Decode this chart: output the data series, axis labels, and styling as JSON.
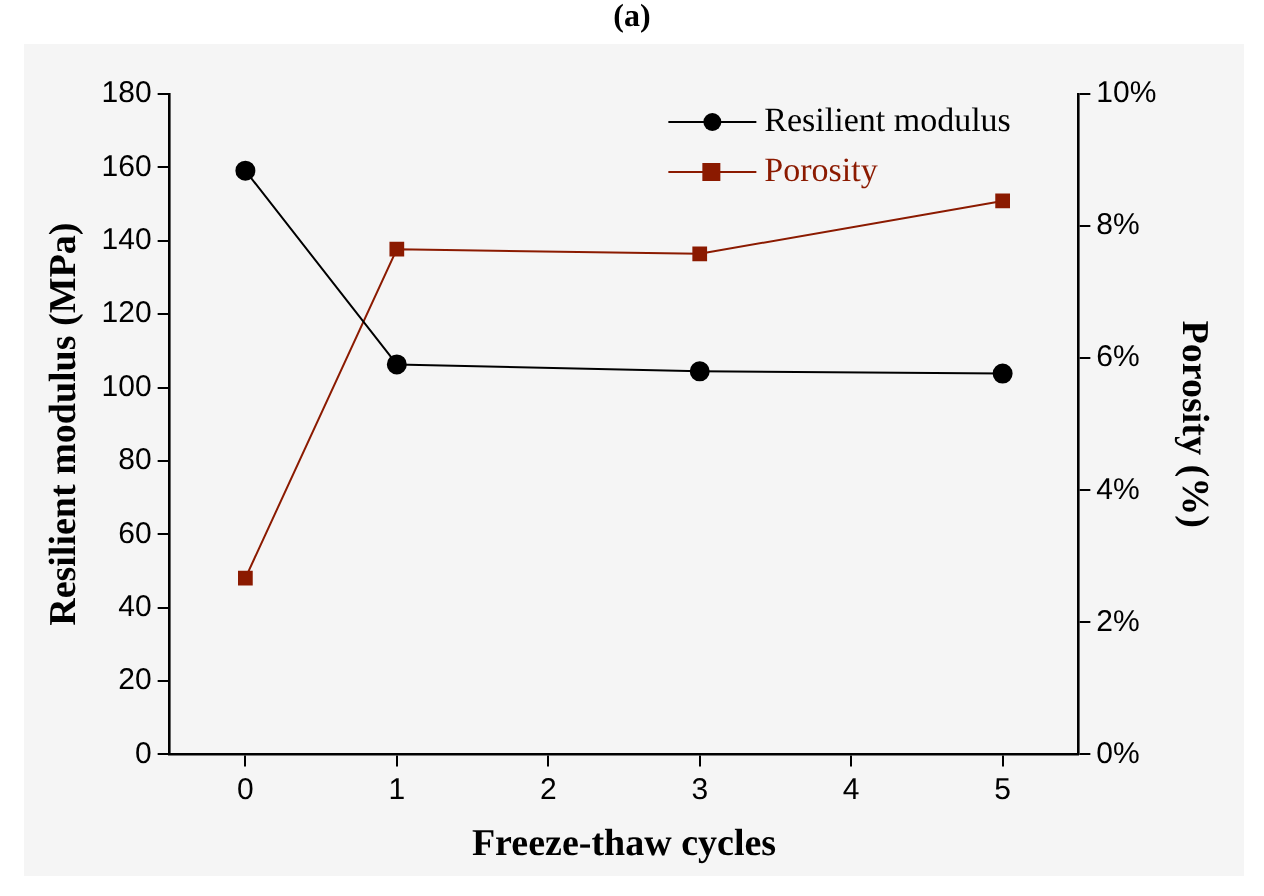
{
  "chart_data": {
    "type": "line",
    "title": "(a)",
    "xlabel": "Freeze-thaw cycles",
    "ylabel": "Resilient modulus (MPa)",
    "y2label": "Porosity (%)",
    "x": [
      0,
      1,
      3,
      5
    ],
    "xlim": [
      -0.5,
      5.5
    ],
    "xticks": [
      0,
      1,
      2,
      3,
      4,
      5
    ],
    "ylim": [
      0,
      180
    ],
    "yticks": [
      0,
      20,
      40,
      60,
      80,
      100,
      120,
      140,
      160,
      180
    ],
    "y2lim": [
      0,
      10
    ],
    "y2ticks": [
      {
        "value": 0,
        "label": "0%"
      },
      {
        "value": 2,
        "label": "2%"
      },
      {
        "value": 4,
        "label": "4%"
      },
      {
        "value": 6,
        "label": "6%"
      },
      {
        "value": 8,
        "label": "8%"
      },
      {
        "value": 10,
        "label": "10%"
      }
    ],
    "series": [
      {
        "name": "Resilient modulus",
        "color": "#000000",
        "marker": "circle",
        "values": [
          159.1,
          106.3,
          104.4,
          103.8
        ]
      },
      {
        "name": "Porosity",
        "color": "#8b1a00",
        "marker": "square",
        "axis": "y2",
        "values": [
          2.67,
          7.65,
          7.58,
          8.38
        ]
      }
    ],
    "legend": "top right",
    "grid": false
  }
}
